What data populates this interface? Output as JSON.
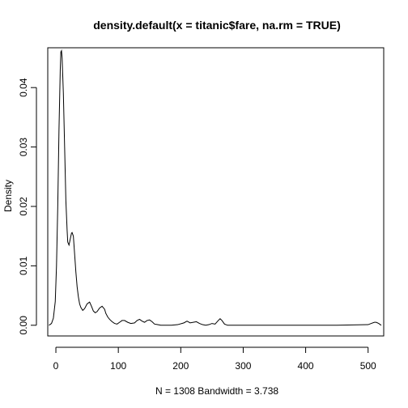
{
  "chart_data": {
    "type": "line",
    "title": "density.default(x = titanic$fare, na.rm = TRUE)",
    "xlabel": "N = 1308   Bandwidth = 3.738",
    "ylabel": "Density",
    "xlim": [
      -13,
      525
    ],
    "ylim": [
      -0.0018,
      0.0467
    ],
    "x_ticks": [
      0,
      100,
      200,
      300,
      400,
      500
    ],
    "x_tick_labels": [
      "0",
      "100",
      "200",
      "300",
      "400",
      "500"
    ],
    "y_ticks": [
      0.0,
      0.01,
      0.02,
      0.03,
      0.04
    ],
    "y_tick_labels": [
      "0.00",
      "0.01",
      "0.02",
      "0.03",
      "0.04"
    ],
    "grid": false,
    "legend": "none",
    "series": [
      {
        "color": "#000000",
        "x": [
          -11,
          -7,
          -4,
          -1,
          1,
          3,
          5,
          7,
          8,
          9,
          10,
          12,
          14,
          16,
          18,
          19,
          21,
          23,
          25,
          26,
          28,
          30,
          32,
          34,
          36,
          38,
          40,
          43,
          46,
          50,
          54,
          57,
          60,
          63,
          66,
          70,
          74,
          78,
          80,
          83,
          86,
          90,
          94,
          98,
          102,
          106,
          110,
          115,
          120,
          126,
          130,
          134,
          138,
          142,
          146,
          150,
          154,
          158,
          163,
          168,
          175,
          185,
          195,
          205,
          210,
          215,
          220,
          225,
          230,
          235,
          240,
          245,
          250,
          255,
          260,
          263,
          266,
          270,
          275,
          285,
          300,
          350,
          400,
          450,
          500,
          505,
          510,
          513,
          517,
          521
        ],
        "y": [
          0.0,
          0.0003,
          0.0012,
          0.004,
          0.01,
          0.02,
          0.033,
          0.043,
          0.046,
          0.0462,
          0.045,
          0.039,
          0.03,
          0.021,
          0.016,
          0.014,
          0.0135,
          0.0145,
          0.0155,
          0.0156,
          0.015,
          0.012,
          0.009,
          0.0065,
          0.0048,
          0.0036,
          0.003,
          0.0025,
          0.0028,
          0.0036,
          0.0039,
          0.0032,
          0.0024,
          0.0021,
          0.0023,
          0.0029,
          0.0032,
          0.0027,
          0.002,
          0.0014,
          0.001,
          0.0006,
          0.0003,
          0.0002,
          0.0005,
          0.0008,
          0.0008,
          0.0005,
          0.0003,
          0.0004,
          0.0008,
          0.001,
          0.0007,
          0.0005,
          0.0008,
          0.0009,
          0.0006,
          0.0002,
          0.0001,
          0.0,
          0.0,
          0.0,
          0.0001,
          0.0004,
          0.0007,
          0.0004,
          0.0005,
          0.0006,
          0.0003,
          0.0001,
          0.0,
          0.0001,
          0.0003,
          0.0002,
          0.0008,
          0.0011,
          0.0008,
          0.0002,
          0.0,
          0.0,
          0.0,
          0.0,
          0.0,
          0.0,
          0.0001,
          0.0003,
          0.0005,
          0.0005,
          0.0003,
          0.0
        ]
      }
    ]
  }
}
